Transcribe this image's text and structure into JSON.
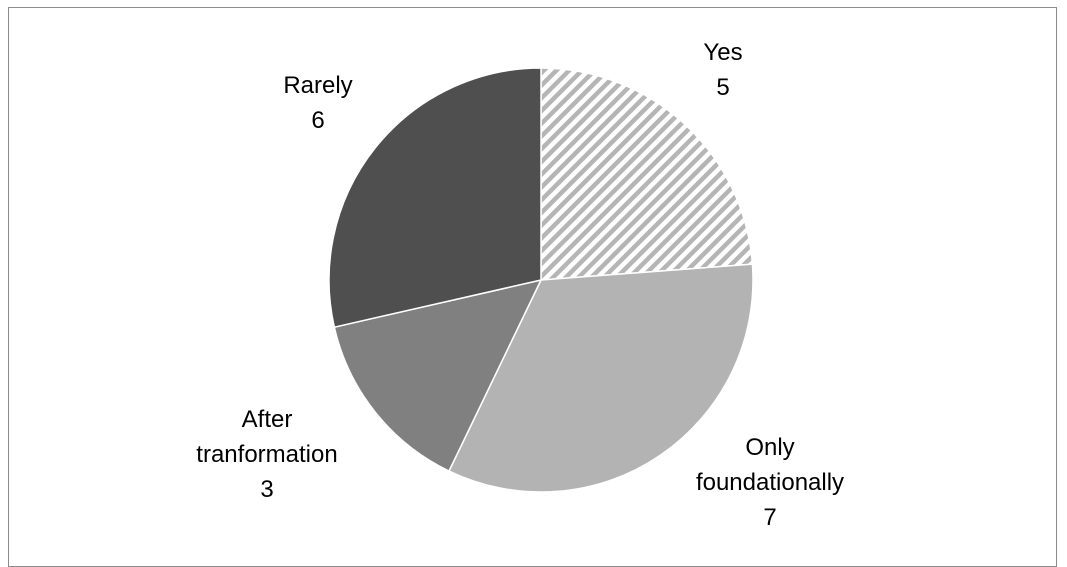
{
  "chart_data": {
    "type": "pie",
    "slices": [
      {
        "category": "Yes",
        "value": 5,
        "color": "#bdbdbd",
        "pattern": "diagonal-hatch"
      },
      {
        "category": "Only foundationally",
        "value": 7,
        "color": "#b3b3b3"
      },
      {
        "category": "After tranformation",
        "value": 3,
        "color": "#808080"
      },
      {
        "category": "Rarely",
        "value": 6,
        "color": "#4f4f4f"
      }
    ],
    "labels": [
      {
        "lines": [
          "Yes"
        ],
        "value": "5"
      },
      {
        "lines": [
          "Only",
          "foundationally"
        ],
        "value": "7"
      },
      {
        "lines": [
          "After",
          "tranformation"
        ],
        "value": "3"
      },
      {
        "lines": [
          "Rarely"
        ],
        "value": "6"
      }
    ],
    "start_angle": "12 o'clock",
    "direction": "clockwise",
    "legend": "none"
  }
}
